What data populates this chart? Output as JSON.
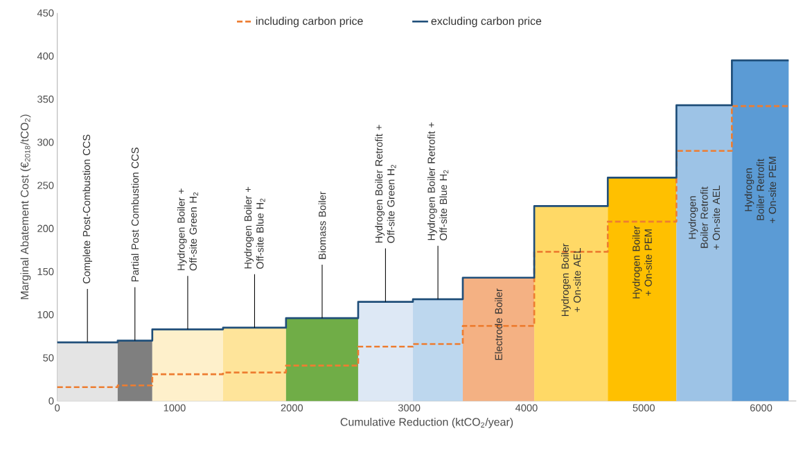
{
  "chart_data": {
    "type": "histogram",
    "xlabel": "Cumulative Reduction (ktCO$_{2}$/year)",
    "ylabel": "Marginal Abatement Cost (€$_{2018}$/tCO$_{2}$)",
    "bins": [
      0,
      515,
      810,
      1413,
      1950,
      2565,
      3032,
      3457,
      4066,
      4693,
      5278,
      5751,
      6235
    ],
    "series": [
      {
        "values": [
          68,
          70,
          83,
          85,
          96,
          115,
          118,
          143,
          226,
          259,
          343,
          395
        ],
        "colors": [
          "#e4e4e4",
          "#7f7f7f",
          "#fef0cb",
          "#fee49a",
          "#70ad47",
          "#dde8f5",
          "#bdd7ee",
          "#f4b183",
          "#ffd966",
          "#ffc000",
          "#9dc3e6",
          "#5b9bd5"
        ]
      },
      {
        "name": "including carbon price",
        "type": "step",
        "color": "#ed7d31",
        "line_style": "dashed",
        "x": [
          0,
          515,
          810,
          1413,
          1950,
          2565,
          3032,
          3457,
          4066,
          4693,
          5278,
          5751,
          6235
        ],
        "values": [
          16,
          18,
          31,
          33,
          41,
          63,
          66,
          87,
          173,
          208,
          290,
          342,
          342
        ]
      },
      {
        "name": "excluding carbon price",
        "type": "step",
        "color": "#1f4e79",
        "line_style": "solid",
        "x": [
          0,
          515,
          810,
          1413,
          1950,
          2565,
          3032,
          3457,
          4066,
          4693,
          5278,
          5751,
          6235
        ],
        "values": [
          68,
          70,
          83,
          85,
          96,
          115,
          118,
          143,
          226,
          259,
          343,
          395,
          395
        ]
      }
    ],
    "annotations": [
      {
        "text": "Complete Post-Combustion CCS",
        "x": 257,
        "y": 68
      },
      {
        "text": "Partial Post Combustion CCS",
        "x": 662,
        "y": 70
      },
      {
        "text": "Hydrogen Boiler + Off-site Green H$_{2}$",
        "x": 1112,
        "y": 83
      },
      {
        "text": "Hydrogen Boiler + Off-site Blue H$_{2}$",
        "x": 1682,
        "y": 85
      },
      {
        "text": "Biomass Boiler",
        "x": 2258,
        "y": 96
      },
      {
        "text": "Hydrogen Boiler Retrofit + Off-site Green H$_{2}$",
        "x": 2798,
        "y": 115
      },
      {
        "text": "Hydrogen Boiler Retrofit + Off-site Blue H$_{2}$",
        "x": 3245,
        "y": 118
      },
      "Electrode Boiler",
      "Hydrogen Boiler + On-site AEL",
      "Hydrogen Boiler + On-site PEM",
      "Hydrogen Boiler Retrofit + On-site AEL",
      "Hydrogen Boiler Retrofit + On-site PEM"
    ],
    "xlim": [
      0,
      6300
    ],
    "ylim": [
      0,
      450
    ],
    "xticks": [
      0,
      1000,
      2000,
      3000,
      4000,
      5000,
      6000
    ],
    "yticks": [
      0,
      50,
      100,
      150,
      200,
      250,
      300,
      350,
      400,
      450
    ],
    "grid": false,
    "legend": "top"
  }
}
